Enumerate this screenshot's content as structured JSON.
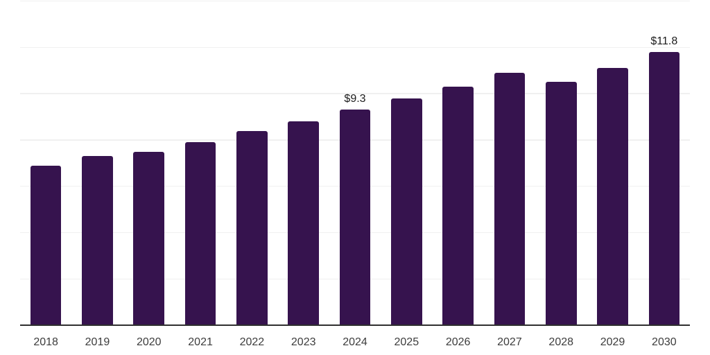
{
  "chart_data": {
    "type": "bar",
    "title": "",
    "xlabel": "",
    "ylabel": "",
    "categories": [
      "2018",
      "2019",
      "2020",
      "2021",
      "2022",
      "2023",
      "2024",
      "2025",
      "2026",
      "2027",
      "2028",
      "2029",
      "2030"
    ],
    "values": [
      6.9,
      7.3,
      7.5,
      7.9,
      8.4,
      8.8,
      9.3,
      9.8,
      10.3,
      10.9,
      10.5,
      11.1,
      11.8
    ],
    "annotations": [
      {
        "category": "2024",
        "label": "$9.3"
      },
      {
        "category": "2030",
        "label": "$11.8"
      }
    ],
    "ylim": [
      0,
      14
    ],
    "grid_step": 2,
    "grid": "horizontal-only",
    "legend_position": "none",
    "y_tick_labels_visible": false,
    "colors": {
      "bar": "#36134E",
      "axis": "#2f2f2f",
      "grid": "#f0f0f0",
      "tick_label": "#3c3c3c",
      "value_label": "#1c1c1c",
      "background": "#ffffff"
    }
  }
}
